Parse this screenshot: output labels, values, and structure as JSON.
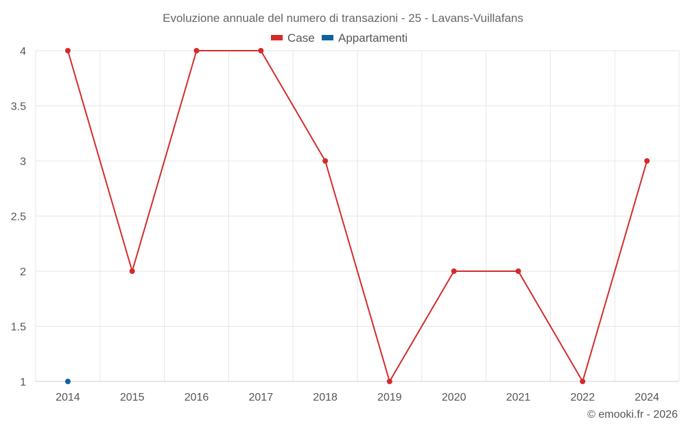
{
  "chart_data": {
    "type": "line",
    "title": "Evoluzione annuale del numero di transazioni - 25 - Lavans-Vuillafans",
    "categories": [
      "2014",
      "2015",
      "2016",
      "2017",
      "2018",
      "2019",
      "2020",
      "2021",
      "2022",
      "2024"
    ],
    "series": [
      {
        "name": "Case",
        "color": "#d42a2a",
        "values": [
          4,
          2,
          4,
          4,
          3,
          1,
          2,
          2,
          1,
          3
        ]
      },
      {
        "name": "Appartamenti",
        "color": "#0f62a0",
        "values": [
          1,
          null,
          null,
          null,
          null,
          null,
          null,
          null,
          null,
          null
        ]
      }
    ],
    "ylim": [
      1,
      4
    ],
    "yticks": [
      "1",
      "1.5",
      "2",
      "2.5",
      "3",
      "3.5",
      "4"
    ],
    "grid": true,
    "legend_position": "top-center",
    "credit": "© emooki.fr - 2026"
  }
}
